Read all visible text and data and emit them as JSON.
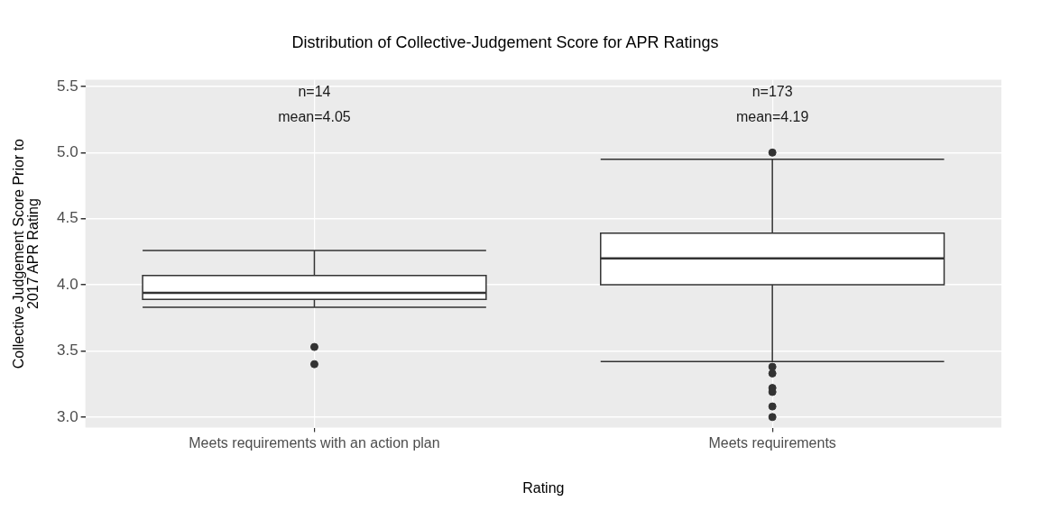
{
  "chart_data": {
    "type": "box",
    "title": "Distribution of Collective-Judgement Score for APR Ratings",
    "xlabel": "Rating",
    "ylabel": "Collective Judgement Score Prior to\n2017 APR Rating",
    "categories": [
      "Meets requirements with an action plan",
      "Meets requirements"
    ],
    "boxes": [
      {
        "low": 3.83,
        "q1": 3.89,
        "median": 3.94,
        "q3": 4.07,
        "high": 4.26,
        "outliers": [
          3.53,
          3.4
        ]
      },
      {
        "low": 3.42,
        "q1": 4.0,
        "median": 4.2,
        "q3": 4.39,
        "high": 4.95,
        "outliers": [
          5.0,
          3.38,
          3.33,
          3.22,
          3.19,
          3.08,
          3.0
        ]
      }
    ],
    "ylim": [
      2.92,
      5.55
    ],
    "yticks": [
      {
        "value": 3,
        "label": "3.0"
      },
      3.5,
      {
        "value": 4,
        "label": "4.0"
      },
      4.5,
      {
        "value": 5,
        "label": "5.0"
      },
      5.5
    ],
    "grid": true,
    "legend": false,
    "annotations": [
      "n=14",
      "mean=4.05",
      "n=173",
      "mean=4.19"
    ]
  }
}
